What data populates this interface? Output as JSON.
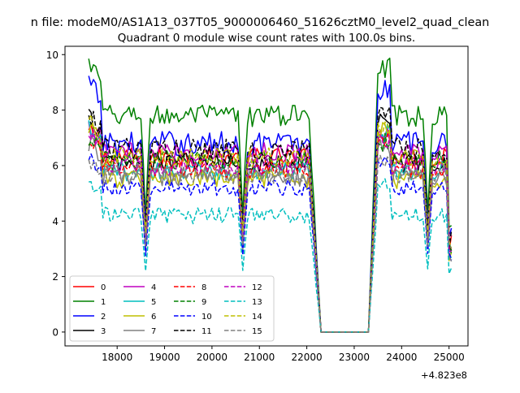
{
  "suptitle": "n file: modeM0/AS1A13_037T05_9000006460_51626cztM0_level2_quad_clean",
  "chart_data": {
    "type": "line",
    "title": "Quadrant 0 module wise count rates with 100.0s bins.",
    "xlabel": "",
    "ylabel": "",
    "offset_label": "+4.823e8",
    "xlim": [
      16900,
      25400
    ],
    "ylim": [
      -0.5,
      10.3
    ],
    "xticks": [
      18000,
      19000,
      20000,
      21000,
      22000,
      23000,
      24000,
      25000
    ],
    "xtick_labels": [
      "18000",
      "19000",
      "20000",
      "21000",
      "22000",
      "23000",
      "24000",
      "25000"
    ],
    "yticks": [
      0,
      2,
      4,
      6,
      8,
      10
    ],
    "ytick_labels": [
      "0",
      "2",
      "4",
      "6",
      "8",
      "10"
    ],
    "bin_size_s": 100,
    "segments": [
      {
        "start": 17400,
        "end": 18500,
        "kind": "on"
      },
      {
        "start": 18500,
        "end": 18700,
        "kind": "dip"
      },
      {
        "start": 18700,
        "end": 20550,
        "kind": "on"
      },
      {
        "start": 20550,
        "end": 20750,
        "kind": "dip"
      },
      {
        "start": 20750,
        "end": 22050,
        "kind": "on"
      },
      {
        "start": 22050,
        "end": 22300,
        "kind": "fall"
      },
      {
        "start": 22300,
        "end": 23300,
        "kind": "off"
      },
      {
        "start": 23300,
        "end": 23500,
        "kind": "rise"
      },
      {
        "start": 23500,
        "end": 24450,
        "kind": "on"
      },
      {
        "start": 24450,
        "end": 24650,
        "kind": "dip"
      },
      {
        "start": 24650,
        "end": 25000,
        "kind": "on"
      },
      {
        "start": 25000,
        "end": 25050,
        "kind": "end"
      }
    ],
    "series": [
      {
        "name": "0",
        "color": "#ff0000",
        "dash": "solid",
        "level": 6.3,
        "start": 7.2,
        "jitter": 0.35
      },
      {
        "name": "1",
        "color": "#008000",
        "dash": "solid",
        "level": 7.8,
        "start": 9.7,
        "jitter": 0.4
      },
      {
        "name": "2",
        "color": "#0000ff",
        "dash": "solid",
        "level": 6.8,
        "start": 9.0,
        "jitter": 0.45
      },
      {
        "name": "3",
        "color": "#000000",
        "dash": "solid",
        "level": 6.1,
        "start": 7.8,
        "jitter": 0.35
      },
      {
        "name": "4",
        "color": "#bf00bf",
        "dash": "solid",
        "level": 6.5,
        "start": 7.3,
        "jitter": 0.35
      },
      {
        "name": "5",
        "color": "#00bfbf",
        "dash": "solid",
        "level": 5.8,
        "start": 7.3,
        "jitter": 0.35
      },
      {
        "name": "6",
        "color": "#bfbf00",
        "dash": "solid",
        "level": 5.5,
        "start": 7.5,
        "jitter": 0.35
      },
      {
        "name": "7",
        "color": "#808080",
        "dash": "solid",
        "level": 5.6,
        "start": 6.8,
        "jitter": 0.35
      },
      {
        "name": "8",
        "color": "#ff0000",
        "dash": "dashed",
        "level": 5.9,
        "start": 7.0,
        "jitter": 0.35
      },
      {
        "name": "9",
        "color": "#008000",
        "dash": "dashed",
        "level": 6.2,
        "start": 6.9,
        "jitter": 0.35
      },
      {
        "name": "10",
        "color": "#0000ff",
        "dash": "dashed",
        "level": 5.2,
        "start": 6.3,
        "jitter": 0.3
      },
      {
        "name": "11",
        "color": "#000000",
        "dash": "dashed",
        "level": 6.6,
        "start": 7.9,
        "jitter": 0.4
      },
      {
        "name": "12",
        "color": "#bf00bf",
        "dash": "dashed",
        "level": 6.0,
        "start": 7.1,
        "jitter": 0.35
      },
      {
        "name": "13",
        "color": "#00bfbf",
        "dash": "dashed",
        "level": 4.2,
        "start": 5.4,
        "jitter": 0.3
      },
      {
        "name": "14",
        "color": "#bfbf00",
        "dash": "dashed",
        "level": 6.3,
        "start": 7.6,
        "jitter": 0.35
      },
      {
        "name": "15",
        "color": "#808080",
        "dash": "dashed",
        "level": 5.7,
        "start": 6.1,
        "jitter": 0.35
      }
    ],
    "legend": {
      "location": "lower-left",
      "columns": 4
    }
  }
}
